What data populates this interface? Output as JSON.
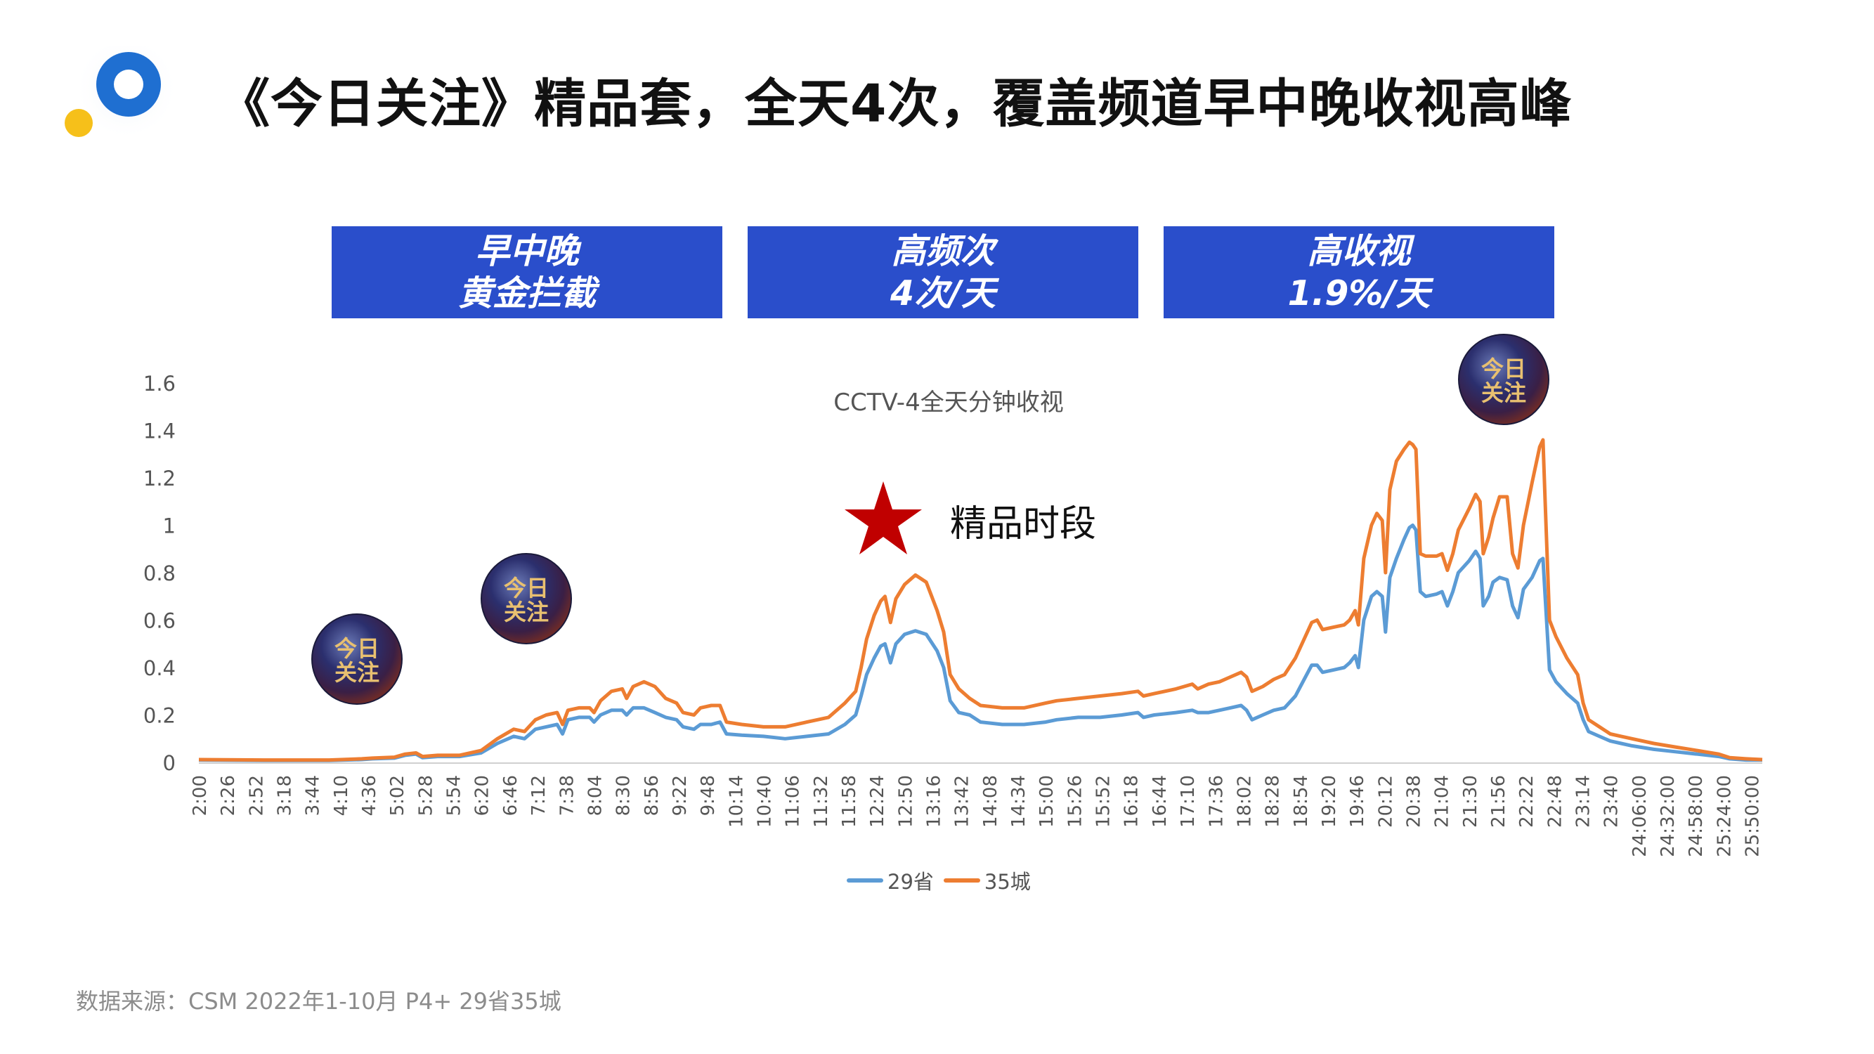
{
  "title": "《今日关注》精品套，全天4次，覆盖频道早中晚收视高峰",
  "boxes": [
    {
      "line1": "早中晚",
      "line2": "黄金拦截"
    },
    {
      "line1": "高频次",
      "line2": "4次/天"
    },
    {
      "line1": "高收视",
      "line2": "1.9%/天"
    }
  ],
  "source": "数据来源：CSM 2022年1-10月 P4+ 29省35城",
  "annotation": {
    "text": "精品时段",
    "icon": "star-icon"
  },
  "badge": {
    "text": "今日\n关注",
    "icon": "program-logo-badge"
  },
  "colors": {
    "box": "#2a4ecb",
    "series_29": "#5b9bd5",
    "series_35": "#ed7d31",
    "star": "#c00000"
  },
  "chart_data": {
    "type": "line",
    "title": "CCTV-4全天分钟收视",
    "xlabel": "",
    "ylabel": "",
    "ylim": [
      0,
      1.6
    ],
    "yticks": [
      "0",
      "0.2",
      "0.4",
      "0.6",
      "0.8",
      "1",
      "1.2",
      "1.4",
      "1.6"
    ],
    "grid": false,
    "legend_position": "bottom",
    "x_tick_labels": [
      "2:00",
      "2:26",
      "2:52",
      "3:18",
      "3:44",
      "4:10",
      "4:36",
      "5:02",
      "5:28",
      "5:54",
      "6:20",
      "6:46",
      "7:12",
      "7:38",
      "8:04",
      "8:30",
      "8:56",
      "9:22",
      "9:48",
      "10:14",
      "10:40",
      "11:06",
      "11:32",
      "11:58",
      "12:24",
      "12:50",
      "13:16",
      "13:42",
      "14:08",
      "14:34",
      "15:00",
      "15:26",
      "15:52",
      "16:18",
      "16:44",
      "17:10",
      "17:36",
      "18:02",
      "18:28",
      "18:54",
      "19:20",
      "19:46",
      "20:12",
      "20:38",
      "21:04",
      "21:30",
      "21:56",
      "22:22",
      "22:48",
      "23:14",
      "23:40",
      "24:06:00",
      "24:32:00",
      "24:58:00",
      "25:24:00",
      "25:50:00"
    ],
    "x_range_minutes": [
      120,
      1560
    ],
    "series": [
      {
        "name": "29省",
        "points": [
          [
            120,
            0.01
          ],
          [
            180,
            0.008
          ],
          [
            240,
            0.008
          ],
          [
            270,
            0.012
          ],
          [
            280,
            0.015
          ],
          [
            300,
            0.018
          ],
          [
            310,
            0.03
          ],
          [
            320,
            0.035
          ],
          [
            326,
            0.02
          ],
          [
            340,
            0.025
          ],
          [
            360,
            0.025
          ],
          [
            380,
            0.04
          ],
          [
            395,
            0.08
          ],
          [
            410,
            0.11
          ],
          [
            420,
            0.1
          ],
          [
            430,
            0.14
          ],
          [
            440,
            0.15
          ],
          [
            450,
            0.16
          ],
          [
            455,
            0.12
          ],
          [
            460,
            0.18
          ],
          [
            470,
            0.19
          ],
          [
            480,
            0.19
          ],
          [
            484,
            0.17
          ],
          [
            490,
            0.2
          ],
          [
            500,
            0.22
          ],
          [
            510,
            0.22
          ],
          [
            514,
            0.2
          ],
          [
            520,
            0.23
          ],
          [
            530,
            0.23
          ],
          [
            540,
            0.21
          ],
          [
            550,
            0.19
          ],
          [
            560,
            0.18
          ],
          [
            566,
            0.15
          ],
          [
            576,
            0.14
          ],
          [
            582,
            0.16
          ],
          [
            592,
            0.16
          ],
          [
            600,
            0.17
          ],
          [
            606,
            0.12
          ],
          [
            620,
            0.115
          ],
          [
            640,
            0.11
          ],
          [
            660,
            0.1
          ],
          [
            680,
            0.11
          ],
          [
            700,
            0.12
          ],
          [
            715,
            0.16
          ],
          [
            725,
            0.2
          ],
          [
            730,
            0.28
          ],
          [
            735,
            0.37
          ],
          [
            742,
            0.44
          ],
          [
            748,
            0.49
          ],
          [
            752,
            0.5
          ],
          [
            757,
            0.42
          ],
          [
            762,
            0.5
          ],
          [
            770,
            0.54
          ],
          [
            780,
            0.555
          ],
          [
            790,
            0.54
          ],
          [
            800,
            0.47
          ],
          [
            806,
            0.4
          ],
          [
            812,
            0.26
          ],
          [
            820,
            0.21
          ],
          [
            830,
            0.2
          ],
          [
            840,
            0.17
          ],
          [
            860,
            0.16
          ],
          [
            880,
            0.16
          ],
          [
            900,
            0.17
          ],
          [
            910,
            0.18
          ],
          [
            930,
            0.19
          ],
          [
            950,
            0.19
          ],
          [
            970,
            0.2
          ],
          [
            985,
            0.21
          ],
          [
            990,
            0.19
          ],
          [
            1000,
            0.2
          ],
          [
            1020,
            0.21
          ],
          [
            1035,
            0.22
          ],
          [
            1040,
            0.21
          ],
          [
            1050,
            0.21
          ],
          [
            1060,
            0.22
          ],
          [
            1070,
            0.23
          ],
          [
            1080,
            0.24
          ],
          [
            1085,
            0.22
          ],
          [
            1090,
            0.18
          ],
          [
            1100,
            0.2
          ],
          [
            1110,
            0.22
          ],
          [
            1120,
            0.23
          ],
          [
            1130,
            0.28
          ],
          [
            1138,
            0.35
          ],
          [
            1145,
            0.41
          ],
          [
            1150,
            0.41
          ],
          [
            1155,
            0.38
          ],
          [
            1165,
            0.39
          ],
          [
            1175,
            0.4
          ],
          [
            1180,
            0.42
          ],
          [
            1185,
            0.45
          ],
          [
            1188,
            0.4
          ],
          [
            1193,
            0.6
          ],
          [
            1200,
            0.7
          ],
          [
            1205,
            0.72
          ],
          [
            1210,
            0.7
          ],
          [
            1213,
            0.55
          ],
          [
            1217,
            0.78
          ],
          [
            1223,
            0.86
          ],
          [
            1230,
            0.94
          ],
          [
            1235,
            0.99
          ],
          [
            1238,
            1.0
          ],
          [
            1241,
            0.98
          ],
          [
            1245,
            0.72
          ],
          [
            1250,
            0.7
          ],
          [
            1260,
            0.71
          ],
          [
            1265,
            0.72
          ],
          [
            1270,
            0.66
          ],
          [
            1275,
            0.72
          ],
          [
            1280,
            0.8
          ],
          [
            1290,
            0.85
          ],
          [
            1296,
            0.89
          ],
          [
            1300,
            0.86
          ],
          [
            1303,
            0.66
          ],
          [
            1308,
            0.7
          ],
          [
            1312,
            0.76
          ],
          [
            1318,
            0.78
          ],
          [
            1325,
            0.77
          ],
          [
            1330,
            0.66
          ],
          [
            1335,
            0.61
          ],
          [
            1340,
            0.73
          ],
          [
            1348,
            0.78
          ],
          [
            1355,
            0.85
          ],
          [
            1358,
            0.86
          ],
          [
            1360,
            0.7
          ],
          [
            1364,
            0.39
          ],
          [
            1370,
            0.34
          ],
          [
            1380,
            0.29
          ],
          [
            1390,
            0.25
          ],
          [
            1395,
            0.18
          ],
          [
            1400,
            0.13
          ],
          [
            1410,
            0.11
          ],
          [
            1420,
            0.09
          ],
          [
            1430,
            0.08
          ],
          [
            1440,
            0.07
          ],
          [
            1460,
            0.055
          ],
          [
            1480,
            0.045
          ],
          [
            1500,
            0.035
          ],
          [
            1520,
            0.025
          ],
          [
            1530,
            0.015
          ],
          [
            1545,
            0.01
          ],
          [
            1560,
            0.01
          ]
        ]
      },
      {
        "name": "35城",
        "points": [
          [
            120,
            0.012
          ],
          [
            180,
            0.01
          ],
          [
            240,
            0.01
          ],
          [
            270,
            0.015
          ],
          [
            280,
            0.018
          ],
          [
            300,
            0.022
          ],
          [
            310,
            0.035
          ],
          [
            320,
            0.04
          ],
          [
            326,
            0.025
          ],
          [
            340,
            0.03
          ],
          [
            360,
            0.03
          ],
          [
            380,
            0.05
          ],
          [
            395,
            0.1
          ],
          [
            410,
            0.14
          ],
          [
            420,
            0.13
          ],
          [
            430,
            0.18
          ],
          [
            440,
            0.2
          ],
          [
            450,
            0.21
          ],
          [
            455,
            0.16
          ],
          [
            460,
            0.22
          ],
          [
            470,
            0.23
          ],
          [
            480,
            0.23
          ],
          [
            484,
            0.21
          ],
          [
            490,
            0.26
          ],
          [
            500,
            0.3
          ],
          [
            510,
            0.31
          ],
          [
            514,
            0.27
          ],
          [
            520,
            0.32
          ],
          [
            530,
            0.34
          ],
          [
            540,
            0.32
          ],
          [
            550,
            0.27
          ],
          [
            560,
            0.25
          ],
          [
            566,
            0.21
          ],
          [
            576,
            0.2
          ],
          [
            582,
            0.23
          ],
          [
            592,
            0.24
          ],
          [
            600,
            0.24
          ],
          [
            606,
            0.17
          ],
          [
            620,
            0.16
          ],
          [
            640,
            0.15
          ],
          [
            660,
            0.15
          ],
          [
            680,
            0.17
          ],
          [
            700,
            0.19
          ],
          [
            715,
            0.25
          ],
          [
            725,
            0.3
          ],
          [
            730,
            0.4
          ],
          [
            735,
            0.52
          ],
          [
            742,
            0.62
          ],
          [
            748,
            0.68
          ],
          [
            752,
            0.7
          ],
          [
            757,
            0.59
          ],
          [
            762,
            0.69
          ],
          [
            770,
            0.75
          ],
          [
            780,
            0.79
          ],
          [
            790,
            0.76
          ],
          [
            800,
            0.64
          ],
          [
            806,
            0.55
          ],
          [
            812,
            0.37
          ],
          [
            820,
            0.31
          ],
          [
            830,
            0.27
          ],
          [
            840,
            0.24
          ],
          [
            860,
            0.23
          ],
          [
            880,
            0.23
          ],
          [
            900,
            0.25
          ],
          [
            910,
            0.26
          ],
          [
            930,
            0.27
          ],
          [
            950,
            0.28
          ],
          [
            970,
            0.29
          ],
          [
            985,
            0.3
          ],
          [
            990,
            0.28
          ],
          [
            1000,
            0.29
          ],
          [
            1020,
            0.31
          ],
          [
            1035,
            0.33
          ],
          [
            1040,
            0.31
          ],
          [
            1050,
            0.33
          ],
          [
            1060,
            0.34
          ],
          [
            1070,
            0.36
          ],
          [
            1080,
            0.38
          ],
          [
            1085,
            0.36
          ],
          [
            1090,
            0.3
          ],
          [
            1100,
            0.32
          ],
          [
            1110,
            0.35
          ],
          [
            1120,
            0.37
          ],
          [
            1130,
            0.44
          ],
          [
            1138,
            0.52
          ],
          [
            1145,
            0.59
          ],
          [
            1150,
            0.6
          ],
          [
            1155,
            0.56
          ],
          [
            1165,
            0.57
          ],
          [
            1175,
            0.58
          ],
          [
            1180,
            0.6
          ],
          [
            1185,
            0.64
          ],
          [
            1188,
            0.58
          ],
          [
            1193,
            0.86
          ],
          [
            1200,
            1.0
          ],
          [
            1205,
            1.05
          ],
          [
            1210,
            1.02
          ],
          [
            1213,
            0.8
          ],
          [
            1217,
            1.15
          ],
          [
            1223,
            1.27
          ],
          [
            1230,
            1.32
          ],
          [
            1235,
            1.35
          ],
          [
            1238,
            1.34
          ],
          [
            1241,
            1.32
          ],
          [
            1245,
            0.88
          ],
          [
            1250,
            0.87
          ],
          [
            1260,
            0.87
          ],
          [
            1265,
            0.88
          ],
          [
            1270,
            0.81
          ],
          [
            1275,
            0.88
          ],
          [
            1280,
            0.98
          ],
          [
            1290,
            1.07
          ],
          [
            1296,
            1.13
          ],
          [
            1300,
            1.1
          ],
          [
            1303,
            0.88
          ],
          [
            1308,
            0.95
          ],
          [
            1312,
            1.03
          ],
          [
            1318,
            1.12
          ],
          [
            1325,
            1.12
          ],
          [
            1330,
            0.88
          ],
          [
            1335,
            0.82
          ],
          [
            1340,
            1.0
          ],
          [
            1348,
            1.18
          ],
          [
            1355,
            1.33
          ],
          [
            1358,
            1.36
          ],
          [
            1360,
            1.1
          ],
          [
            1364,
            0.6
          ],
          [
            1370,
            0.53
          ],
          [
            1380,
            0.44
          ],
          [
            1390,
            0.37
          ],
          [
            1395,
            0.25
          ],
          [
            1400,
            0.18
          ],
          [
            1410,
            0.15
          ],
          [
            1420,
            0.12
          ],
          [
            1430,
            0.11
          ],
          [
            1440,
            0.1
          ],
          [
            1460,
            0.08
          ],
          [
            1480,
            0.065
          ],
          [
            1500,
            0.05
          ],
          [
            1520,
            0.035
          ],
          [
            1530,
            0.02
          ],
          [
            1545,
            0.015
          ],
          [
            1560,
            0.012
          ]
        ]
      }
    ]
  }
}
